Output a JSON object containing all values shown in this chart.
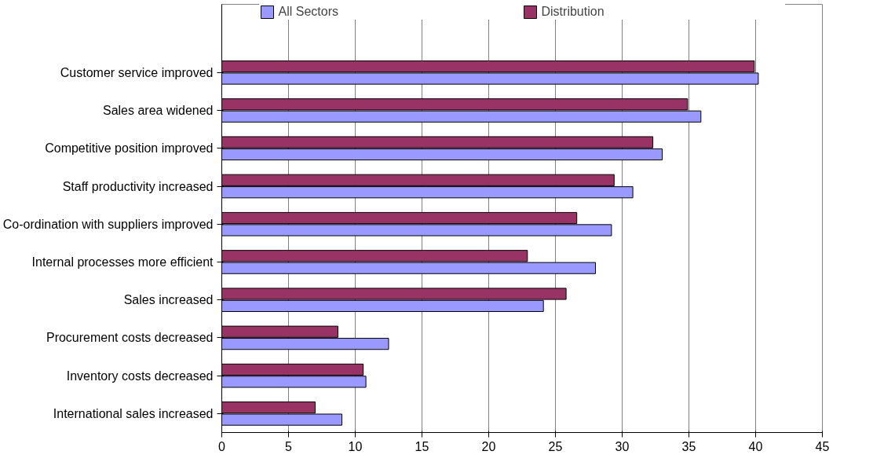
{
  "chart_data": {
    "type": "bar",
    "orientation": "horizontal",
    "categories": [
      "Customer service improved",
      "Sales area widened",
      "Competitive position improved",
      "Staff productivity increased",
      "Co-ordination with suppliers improved",
      "Internal processes more efficient",
      "Sales increased",
      "Procurement costs decreased",
      "Inventory costs decreased",
      "International sales increased"
    ],
    "series": [
      {
        "name": "All Sectors",
        "color": "#9999ff",
        "values": [
          40.2,
          35.9,
          33.0,
          30.8,
          29.2,
          28.0,
          24.1,
          12.5,
          10.8,
          9.0
        ]
      },
      {
        "name": "Distribution",
        "color": "#993366",
        "values": [
          39.9,
          34.9,
          32.3,
          29.4,
          26.6,
          22.9,
          25.8,
          8.7,
          10.6,
          7.0
        ]
      }
    ],
    "xlim": [
      0,
      45
    ],
    "xticks": [
      0,
      5,
      10,
      15,
      20,
      25,
      30,
      35,
      40,
      45
    ],
    "grid": "x",
    "legend": "top"
  }
}
